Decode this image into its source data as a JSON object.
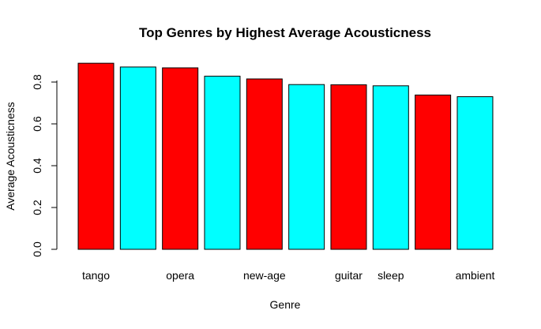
{
  "chart_data": {
    "type": "bar",
    "title": "Top Genres by Highest Average Acousticness",
    "xlabel": "Genre",
    "ylabel": "Average Acousticness",
    "categories": [
      "tango",
      "",
      "opera",
      "",
      "new-age",
      "",
      "guitar",
      "sleep",
      "",
      "ambient"
    ],
    "values": [
      0.89,
      0.872,
      0.868,
      0.828,
      0.815,
      0.788,
      0.787,
      0.782,
      0.738,
      0.73
    ],
    "bar_colors": [
      "#ff0000",
      "#00ffff",
      "#ff0000",
      "#00ffff",
      "#ff0000",
      "#00ffff",
      "#ff0000",
      "#00ffff",
      "#ff0000",
      "#00ffff"
    ],
    "y_ticks": [
      "0.0",
      "0.2",
      "0.4",
      "0.6",
      "0.8"
    ],
    "ylim": [
      0,
      0.9
    ],
    "grid": false,
    "legend": "none"
  }
}
